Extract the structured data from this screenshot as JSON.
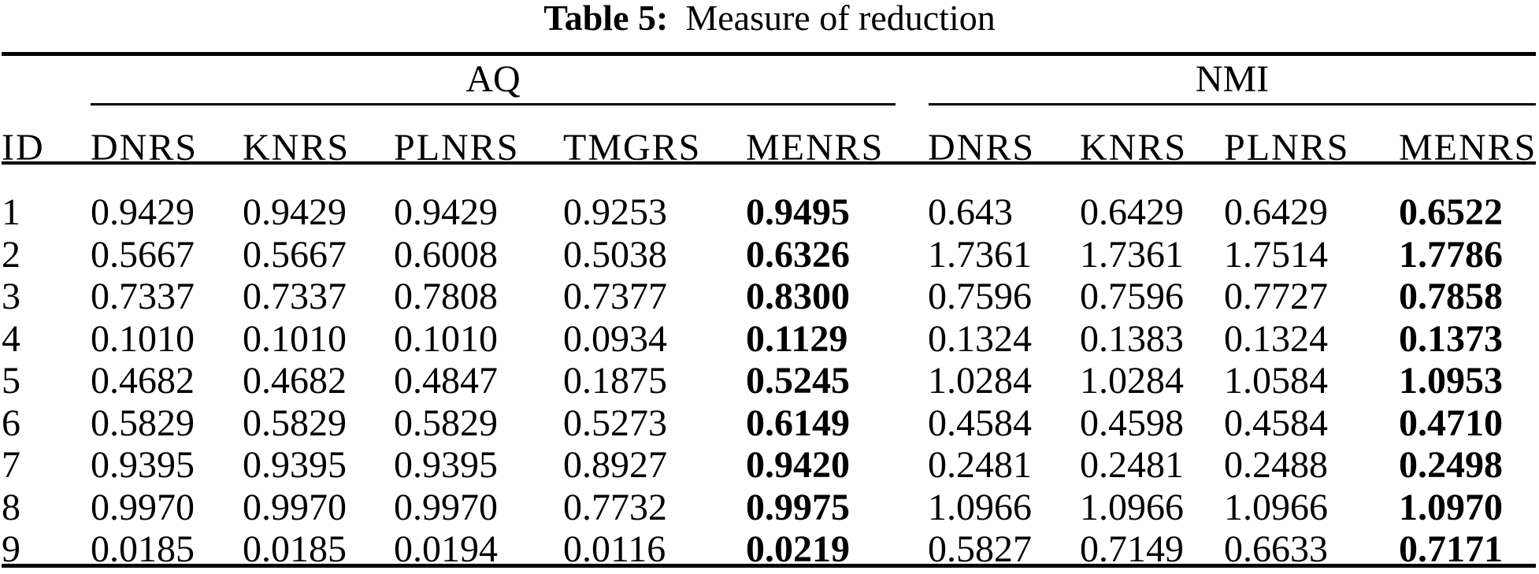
{
  "title": {
    "label": "Table 5:",
    "text": "Measure of reduction"
  },
  "table": {
    "id_header": "ID",
    "groups": [
      {
        "label": "AQ",
        "columns": [
          "DNRS",
          "KNRS",
          "PLNRS",
          "TMGRS",
          "MENRS"
        ]
      },
      {
        "label": "NMI",
        "columns": [
          "DNRS",
          "KNRS",
          "PLNRS",
          "MENRS"
        ]
      }
    ],
    "bold_value_indexes": [
      4,
      8
    ],
    "rows": [
      {
        "id": "1",
        "values": [
          "0.9429",
          "0.9429",
          "0.9429",
          "0.9253",
          "0.9495",
          "0.643",
          "0.6429",
          "0.6429",
          "0.6522"
        ]
      },
      {
        "id": "2",
        "values": [
          "0.5667",
          "0.5667",
          "0.6008",
          "0.5038",
          "0.6326",
          "1.7361",
          "1.7361",
          "1.7514",
          "1.7786"
        ]
      },
      {
        "id": "3",
        "values": [
          "0.7337",
          "0.7337",
          "0.7808",
          "0.7377",
          "0.8300",
          "0.7596",
          "0.7596",
          "0.7727",
          "0.7858"
        ]
      },
      {
        "id": "4",
        "values": [
          "0.1010",
          "0.1010",
          "0.1010",
          "0.0934",
          "0.1129",
          "0.1324",
          "0.1383",
          "0.1324",
          "0.1373"
        ]
      },
      {
        "id": "5",
        "values": [
          "0.4682",
          "0.4682",
          "0.4847",
          "0.1875",
          "0.5245",
          "1.0284",
          "1.0284",
          "1.0584",
          "1.0953"
        ]
      },
      {
        "id": "6",
        "values": [
          "0.5829",
          "0.5829",
          "0.5829",
          "0.5273",
          "0.6149",
          "0.4584",
          "0.4598",
          "0.4584",
          "0.4710"
        ]
      },
      {
        "id": "7",
        "values": [
          "0.9395",
          "0.9395",
          "0.9395",
          "0.8927",
          "0.9420",
          "0.2481",
          "0.2481",
          "0.2488",
          "0.2498"
        ]
      },
      {
        "id": "8",
        "values": [
          "0.9970",
          "0.9970",
          "0.9970",
          "0.7732",
          "0.9975",
          "1.0966",
          "1.0966",
          "1.0966",
          "1.0970"
        ]
      },
      {
        "id": "9",
        "values": [
          "0.0185",
          "0.0185",
          "0.0194",
          "0.0116",
          "0.0219",
          "0.5827",
          "0.7149",
          "0.6633",
          "0.7171"
        ]
      }
    ]
  },
  "colors": {
    "text": "#000000",
    "background": "#ffffff"
  }
}
